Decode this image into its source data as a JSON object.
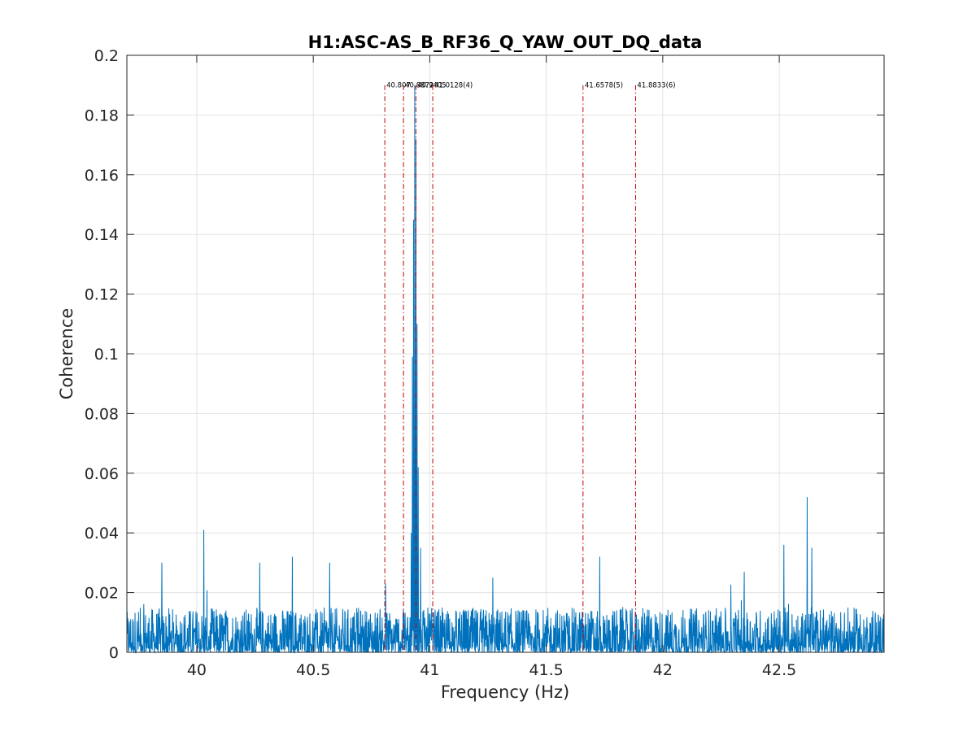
{
  "chart_data": {
    "type": "line",
    "title": "H1:ASC-AS_B_RF36_Q_YAW_OUT_DQ_data",
    "xlabel": "Frequency (Hz)",
    "ylabel": "Coherence",
    "xlim": [
      39.7,
      42.95
    ],
    "ylim": [
      0,
      0.2
    ],
    "x_ticks": [
      40,
      40.5,
      41,
      41.5,
      42,
      42.5
    ],
    "x_tick_labels": [
      "40",
      "40.5",
      "41",
      "41.5",
      "42",
      "42.5"
    ],
    "y_ticks": [
      0,
      0.02,
      0.04,
      0.06,
      0.08,
      0.1,
      0.12,
      0.14,
      0.16,
      0.18,
      0.2
    ],
    "y_tick_labels": [
      "0",
      "0.02",
      "0.04",
      "0.06",
      "0.08",
      "0.1",
      "0.12",
      "0.14",
      "0.16",
      "0.18",
      "0.2"
    ],
    "grid": true,
    "series_color": "#0072BD",
    "marker_color": "#C00000",
    "markers": [
      {
        "x": 40.807,
        "label": "40.807"
      },
      {
        "x": 40.8872,
        "label": "40.8872"
      },
      {
        "x": 40.9405,
        "label": "40.9405"
      },
      {
        "x": 41.0128,
        "label": "41.0128(4)"
      },
      {
        "x": 41.6578,
        "label": "41.6578(5)"
      },
      {
        "x": 41.8833,
        "label": "41.8833(6)"
      }
    ],
    "marker_label_y": 0.19,
    "background_level": [
      0,
      0.015
    ],
    "peaks": [
      {
        "x": 40.935,
        "y": 0.19
      },
      {
        "x": 40.94,
        "y": 0.172
      },
      {
        "x": 40.93,
        "y": 0.145
      },
      {
        "x": 40.945,
        "y": 0.11
      },
      {
        "x": 40.925,
        "y": 0.099
      },
      {
        "x": 40.95,
        "y": 0.062
      },
      {
        "x": 40.92,
        "y": 0.04
      },
      {
        "x": 40.96,
        "y": 0.035
      },
      {
        "x": 40.03,
        "y": 0.041
      },
      {
        "x": 40.41,
        "y": 0.032
      },
      {
        "x": 40.57,
        "y": 0.03
      },
      {
        "x": 40.81,
        "y": 0.023
      },
      {
        "x": 41.73,
        "y": 0.032
      },
      {
        "x": 42.52,
        "y": 0.036
      },
      {
        "x": 42.62,
        "y": 0.052
      },
      {
        "x": 42.64,
        "y": 0.035
      },
      {
        "x": 39.85,
        "y": 0.03
      },
      {
        "x": 40.27,
        "y": 0.03
      },
      {
        "x": 42.35,
        "y": 0.027
      },
      {
        "x": 41.27,
        "y": 0.025
      }
    ]
  }
}
